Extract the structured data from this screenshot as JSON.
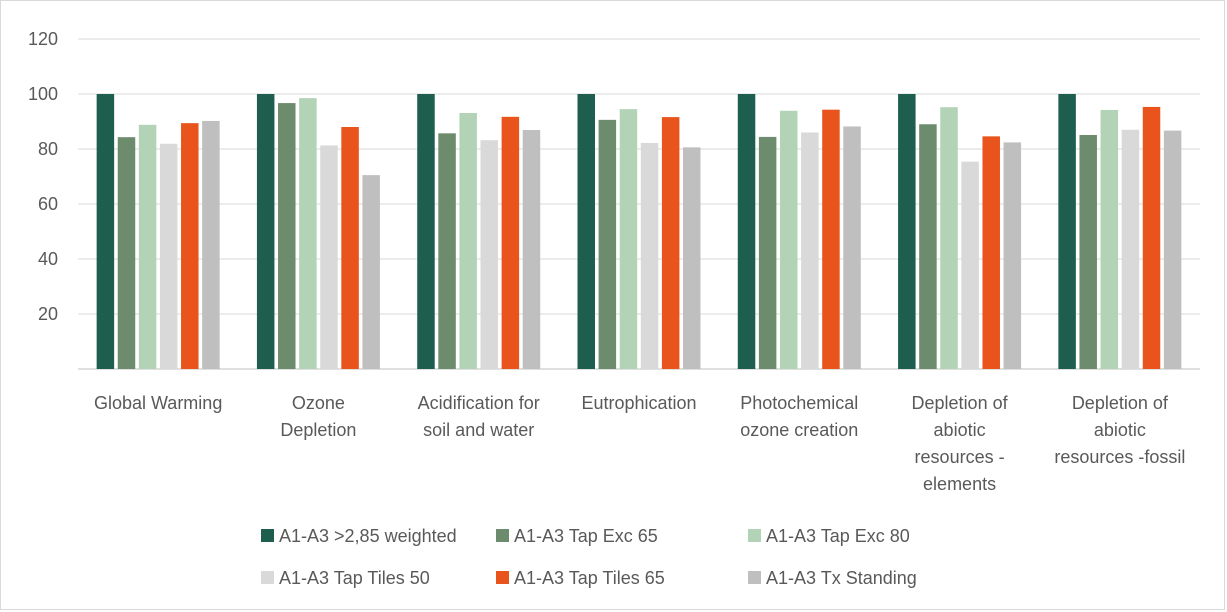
{
  "chart_data": {
    "type": "bar",
    "title": "",
    "xlabel": "",
    "ylabel": "",
    "ylim": [
      0,
      120
    ],
    "yticks": [
      "20",
      "40",
      "60",
      "80",
      "100",
      "120"
    ],
    "grid": true,
    "legend_position": "bottom",
    "categories": [
      [
        "Global Warming"
      ],
      [
        "Ozone",
        "Depletion"
      ],
      [
        "Acidification for",
        "soil and water"
      ],
      [
        "Eutrophication"
      ],
      [
        "Photochemical",
        "ozone creation"
      ],
      [
        "Depletion of",
        "abiotic",
        "resources -",
        "elements"
      ],
      [
        "Depletion of",
        "abiotic",
        "resources -fossil"
      ]
    ],
    "series": [
      {
        "name": "A1-A3 >2,85 weighted",
        "color": "#1e5e4e",
        "values": [
          100,
          100,
          100,
          100,
          100,
          100,
          100
        ]
      },
      {
        "name": "A1-A3 Tap Exc 65",
        "color": "#6d8b6d",
        "values": [
          84.3,
          96.7,
          85.7,
          90.6,
          84.4,
          89.0,
          85.1
        ]
      },
      {
        "name": "A1-A3 Tap Exc 80",
        "color": "#b2d3b6",
        "values": [
          88.8,
          98.5,
          93.1,
          94.5,
          93.9,
          95.2,
          94.2
        ]
      },
      {
        "name": "A1-A3 Tap Tiles 50",
        "color": "#d9d9d9",
        "values": [
          81.9,
          81.3,
          83.2,
          82.2,
          86.0,
          75.4,
          87.0
        ]
      },
      {
        "name": "A1-A3 Tap Tiles 65",
        "color": "#e8541c",
        "values": [
          89.4,
          88.0,
          91.7,
          91.6,
          94.3,
          84.6,
          95.3
        ]
      },
      {
        "name": "A1-A3 Tx Standing",
        "color": "#bfbfbf",
        "values": [
          90.2,
          70.5,
          86.9,
          80.6,
          88.2,
          82.4,
          86.7
        ]
      }
    ]
  }
}
